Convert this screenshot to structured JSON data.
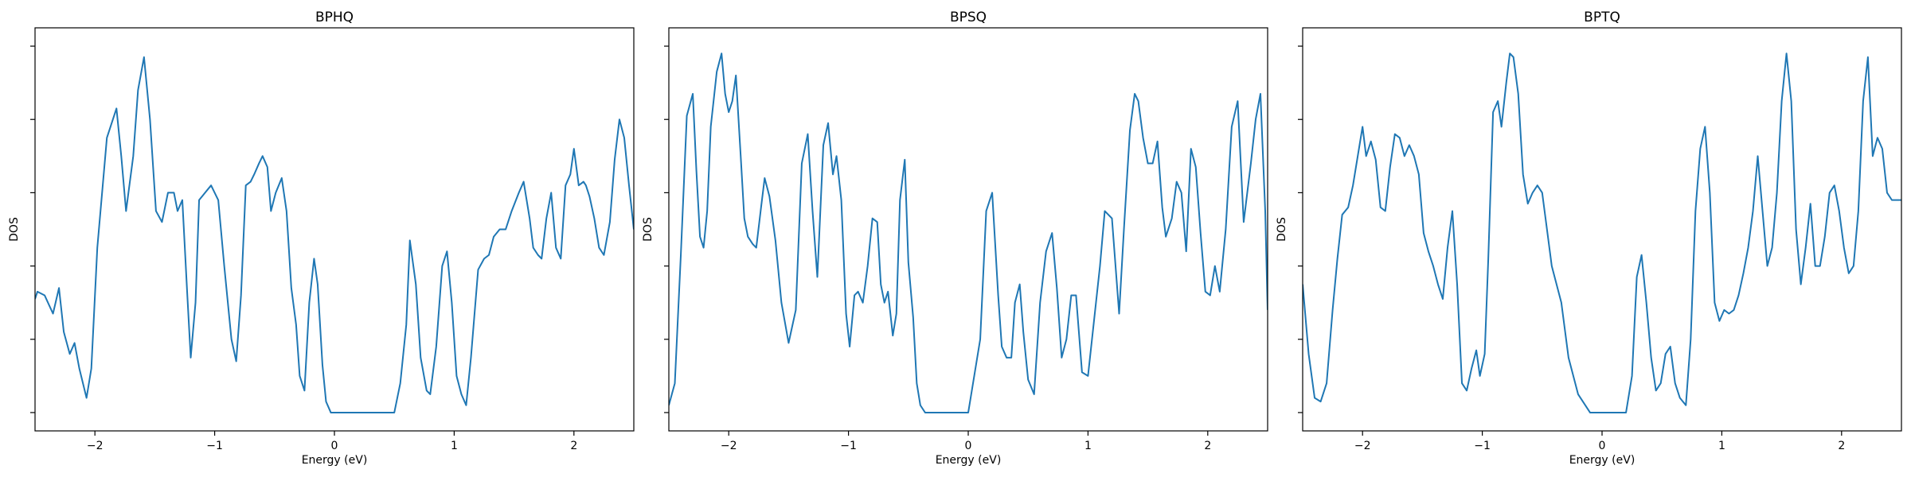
{
  "chart_data": [
    {
      "type": "line",
      "title": "BPHQ",
      "xlabel": "Energy (eV)",
      "ylabel": "DOS",
      "xlim": [
        -2.5,
        2.5
      ],
      "ylim": [
        -0.05,
        1.05
      ],
      "xticks": [
        -2,
        -1,
        0,
        1,
        2
      ],
      "xtick_labels": [
        "−2",
        "−1",
        "0",
        "1",
        "2"
      ],
      "y_tick_labels_shown": false,
      "y_tick_count": 6,
      "grid": false,
      "color": "#1f77b4",
      "series": [
        {
          "x": [
            -2.5,
            -2.48,
            -2.42,
            -2.35,
            -2.3,
            -2.26,
            -2.21,
            -2.17,
            -2.13,
            -2.07,
            -2.03,
            -1.98,
            -1.9,
            -1.82,
            -1.78,
            -1.74,
            -1.68,
            -1.64,
            -1.59,
            -1.54,
            -1.49,
            -1.44,
            -1.39,
            -1.34,
            -1.31,
            -1.27,
            -1.23,
            -1.2,
            -1.16,
            -1.13,
            -1.08,
            -1.03,
            -0.97,
            -0.92,
            -0.86,
            -0.82,
            -0.78,
            -0.74,
            -0.7,
            -0.67,
            -0.63,
            -0.6,
            -0.56,
            -0.53,
            -0.49,
            -0.44,
            -0.4,
            -0.36,
            -0.32,
            -0.29,
            -0.25,
            -0.21,
            -0.17,
            -0.14,
            -0.1,
            -0.07,
            -0.03,
            0.0,
            0.03,
            0.08,
            0.1,
            0.2,
            0.3,
            0.4,
            0.45,
            0.5,
            0.55,
            0.6,
            0.63,
            0.68,
            0.72,
            0.77,
            0.8,
            0.85,
            0.9,
            0.94,
            0.98,
            1.02,
            1.06,
            1.1,
            1.14,
            1.2,
            1.25,
            1.29,
            1.33,
            1.38,
            1.43,
            1.48,
            1.54,
            1.58,
            1.63,
            1.66,
            1.7,
            1.73,
            1.77,
            1.81,
            1.85,
            1.89,
            1.93,
            1.97,
            2.0,
            2.04,
            2.08,
            2.1,
            2.13,
            2.17,
            2.21,
            2.25,
            2.3,
            2.34,
            2.38,
            2.42,
            2.46,
            2.5
          ],
          "y": [
            0.31,
            0.33,
            0.32,
            0.27,
            0.34,
            0.22,
            0.16,
            0.19,
            0.12,
            0.04,
            0.12,
            0.45,
            0.75,
            0.83,
            0.7,
            0.55,
            0.7,
            0.88,
            0.97,
            0.8,
            0.55,
            0.52,
            0.6,
            0.6,
            0.55,
            0.58,
            0.33,
            0.15,
            0.3,
            0.58,
            0.6,
            0.62,
            0.58,
            0.4,
            0.2,
            0.14,
            0.32,
            0.62,
            0.63,
            0.65,
            0.68,
            0.7,
            0.67,
            0.55,
            0.6,
            0.64,
            0.55,
            0.34,
            0.24,
            0.1,
            0.06,
            0.3,
            0.42,
            0.35,
            0.13,
            0.03,
            0.0,
            0.0,
            0.0,
            0.0,
            0.0,
            0.0,
            0.0,
            0.0,
            0.0,
            0.0,
            0.08,
            0.24,
            0.47,
            0.35,
            0.15,
            0.06,
            0.05,
            0.18,
            0.4,
            0.44,
            0.3,
            0.1,
            0.05,
            0.02,
            0.15,
            0.39,
            0.42,
            0.43,
            0.48,
            0.5,
            0.5,
            0.55,
            0.6,
            0.63,
            0.53,
            0.45,
            0.43,
            0.42,
            0.53,
            0.6,
            0.45,
            0.42,
            0.62,
            0.65,
            0.72,
            0.62,
            0.63,
            0.62,
            0.59,
            0.53,
            0.45,
            0.43,
            0.52,
            0.69,
            0.8,
            0.75,
            0.62,
            0.5
          ]
        }
      ]
    },
    {
      "type": "line",
      "title": "BPSQ",
      "xlabel": "Energy (eV)",
      "ylabel": "DOS",
      "xlim": [
        -2.5,
        2.5
      ],
      "ylim": [
        -0.05,
        1.05
      ],
      "xticks": [
        -2,
        -1,
        0,
        1,
        2
      ],
      "xtick_labels": [
        "−2",
        "−1",
        "0",
        "1",
        "2"
      ],
      "y_tick_labels_shown": false,
      "y_tick_count": 6,
      "grid": false,
      "color": "#1f77b4",
      "series": [
        {
          "x": [
            -2.5,
            -2.45,
            -2.4,
            -2.35,
            -2.3,
            -2.27,
            -2.24,
            -2.21,
            -2.18,
            -2.15,
            -2.1,
            -2.06,
            -2.03,
            -2.0,
            -1.97,
            -1.94,
            -1.9,
            -1.87,
            -1.84,
            -1.8,
            -1.77,
            -1.73,
            -1.7,
            -1.66,
            -1.61,
            -1.56,
            -1.5,
            -1.44,
            -1.39,
            -1.34,
            -1.3,
            -1.26,
            -1.21,
            -1.17,
            -1.13,
            -1.1,
            -1.06,
            -1.02,
            -0.99,
            -0.95,
            -0.92,
            -0.88,
            -0.84,
            -0.8,
            -0.76,
            -0.73,
            -0.7,
            -0.67,
            -0.63,
            -0.6,
            -0.57,
            -0.53,
            -0.5,
            -0.46,
            -0.43,
            -0.4,
            -0.36,
            -0.32,
            -0.27,
            -0.22,
            -0.15,
            0.0,
            0.1,
            0.15,
            0.2,
            0.25,
            0.28,
            0.32,
            0.36,
            0.39,
            0.43,
            0.46,
            0.5,
            0.55,
            0.6,
            0.65,
            0.7,
            0.74,
            0.78,
            0.82,
            0.86,
            0.9,
            0.95,
            1.0,
            1.05,
            1.1,
            1.14,
            1.2,
            1.26,
            1.3,
            1.35,
            1.39,
            1.42,
            1.46,
            1.5,
            1.54,
            1.58,
            1.62,
            1.65,
            1.7,
            1.74,
            1.78,
            1.82,
            1.86,
            1.9,
            1.94,
            1.98,
            2.02,
            2.06,
            2.1,
            2.15,
            2.2,
            2.25,
            2.3,
            2.36,
            2.4,
            2.44,
            2.48,
            2.5
          ],
          "y": [
            0.02,
            0.08,
            0.43,
            0.81,
            0.87,
            0.66,
            0.48,
            0.45,
            0.55,
            0.78,
            0.93,
            0.98,
            0.87,
            0.82,
            0.85,
            0.92,
            0.7,
            0.53,
            0.48,
            0.46,
            0.45,
            0.56,
            0.64,
            0.59,
            0.47,
            0.3,
            0.19,
            0.28,
            0.68,
            0.76,
            0.55,
            0.37,
            0.73,
            0.79,
            0.65,
            0.7,
            0.58,
            0.27,
            0.18,
            0.32,
            0.33,
            0.3,
            0.4,
            0.53,
            0.52,
            0.35,
            0.3,
            0.33,
            0.21,
            0.27,
            0.58,
            0.69,
            0.41,
            0.26,
            0.08,
            0.02,
            0.0,
            0.0,
            0.0,
            0.0,
            0.0,
            0.0,
            0.2,
            0.55,
            0.6,
            0.32,
            0.18,
            0.15,
            0.15,
            0.3,
            0.35,
            0.22,
            0.09,
            0.05,
            0.3,
            0.44,
            0.49,
            0.34,
            0.15,
            0.2,
            0.32,
            0.32,
            0.11,
            0.1,
            0.25,
            0.4,
            0.55,
            0.53,
            0.27,
            0.5,
            0.77,
            0.87,
            0.85,
            0.75,
            0.68,
            0.68,
            0.74,
            0.56,
            0.48,
            0.53,
            0.63,
            0.6,
            0.44,
            0.72,
            0.67,
            0.49,
            0.33,
            0.32,
            0.4,
            0.33,
            0.5,
            0.78,
            0.85,
            0.52,
            0.68,
            0.8,
            0.87,
            0.55,
            0.28
          ]
        }
      ]
    },
    {
      "type": "line",
      "title": "BPTQ",
      "xlabel": "Energy (eV)",
      "ylabel": "DOS",
      "xlim": [
        -2.5,
        2.5
      ],
      "ylim": [
        -0.05,
        1.05
      ],
      "xticks": [
        -2,
        -1,
        0,
        1,
        2
      ],
      "xtick_labels": [
        "−2",
        "−1",
        "0",
        "1",
        "2"
      ],
      "y_tick_labels_shown": false,
      "y_tick_count": 6,
      "grid": false,
      "color": "#1f77b4",
      "series": [
        {
          "x": [
            -2.5,
            -2.45,
            -2.4,
            -2.35,
            -2.3,
            -2.25,
            -2.21,
            -2.17,
            -2.12,
            -2.08,
            -2.04,
            -2.0,
            -1.97,
            -1.93,
            -1.89,
            -1.85,
            -1.81,
            -1.77,
            -1.73,
            -1.69,
            -1.65,
            -1.61,
            -1.57,
            -1.53,
            -1.49,
            -1.45,
            -1.41,
            -1.37,
            -1.33,
            -1.29,
            -1.25,
            -1.21,
            -1.17,
            -1.13,
            -1.09,
            -1.05,
            -1.02,
            -0.98,
            -0.95,
            -0.91,
            -0.87,
            -0.84,
            -0.8,
            -0.77,
            -0.74,
            -0.7,
            -0.66,
            -0.62,
            -0.58,
            -0.54,
            -0.5,
            -0.46,
            -0.42,
            -0.38,
            -0.34,
            -0.28,
            -0.2,
            -0.1,
            0.0,
            0.15,
            0.2,
            0.25,
            0.29,
            0.33,
            0.37,
            0.41,
            0.45,
            0.49,
            0.53,
            0.57,
            0.61,
            0.65,
            0.7,
            0.74,
            0.78,
            0.82,
            0.86,
            0.9,
            0.94,
            0.98,
            1.02,
            1.06,
            1.1,
            1.14,
            1.18,
            1.22,
            1.26,
            1.3,
            1.34,
            1.38,
            1.42,
            1.46,
            1.5,
            1.54,
            1.58,
            1.62,
            1.66,
            1.7,
            1.74,
            1.78,
            1.82,
            1.86,
            1.9,
            1.94,
            1.98,
            2.02,
            2.06,
            2.1,
            2.14,
            2.18,
            2.22,
            2.26,
            2.3,
            2.34,
            2.38,
            2.42,
            2.46,
            2.5
          ],
          "y": [
            0.35,
            0.16,
            0.04,
            0.03,
            0.08,
            0.28,
            0.42,
            0.54,
            0.56,
            0.62,
            0.7,
            0.78,
            0.7,
            0.74,
            0.69,
            0.56,
            0.55,
            0.67,
            0.76,
            0.75,
            0.7,
            0.73,
            0.7,
            0.65,
            0.49,
            0.44,
            0.4,
            0.35,
            0.31,
            0.45,
            0.55,
            0.35,
            0.08,
            0.06,
            0.12,
            0.17,
            0.1,
            0.16,
            0.42,
            0.82,
            0.85,
            0.78,
            0.9,
            0.98,
            0.97,
            0.87,
            0.65,
            0.57,
            0.6,
            0.62,
            0.6,
            0.5,
            0.4,
            0.35,
            0.3,
            0.15,
            0.05,
            0.0,
            0.0,
            0.0,
            0.0,
            0.1,
            0.37,
            0.43,
            0.3,
            0.15,
            0.06,
            0.08,
            0.16,
            0.18,
            0.08,
            0.04,
            0.02,
            0.2,
            0.55,
            0.72,
            0.78,
            0.6,
            0.3,
            0.25,
            0.28,
            0.27,
            0.28,
            0.32,
            0.38,
            0.45,
            0.55,
            0.7,
            0.55,
            0.4,
            0.45,
            0.6,
            0.85,
            0.98,
            0.85,
            0.5,
            0.35,
            0.45,
            0.57,
            0.4,
            0.4,
            0.48,
            0.6,
            0.62,
            0.55,
            0.45,
            0.38,
            0.4,
            0.55,
            0.85,
            0.97,
            0.7,
            0.75,
            0.72,
            0.6,
            0.58,
            0.58,
            0.58
          ]
        }
      ]
    }
  ]
}
